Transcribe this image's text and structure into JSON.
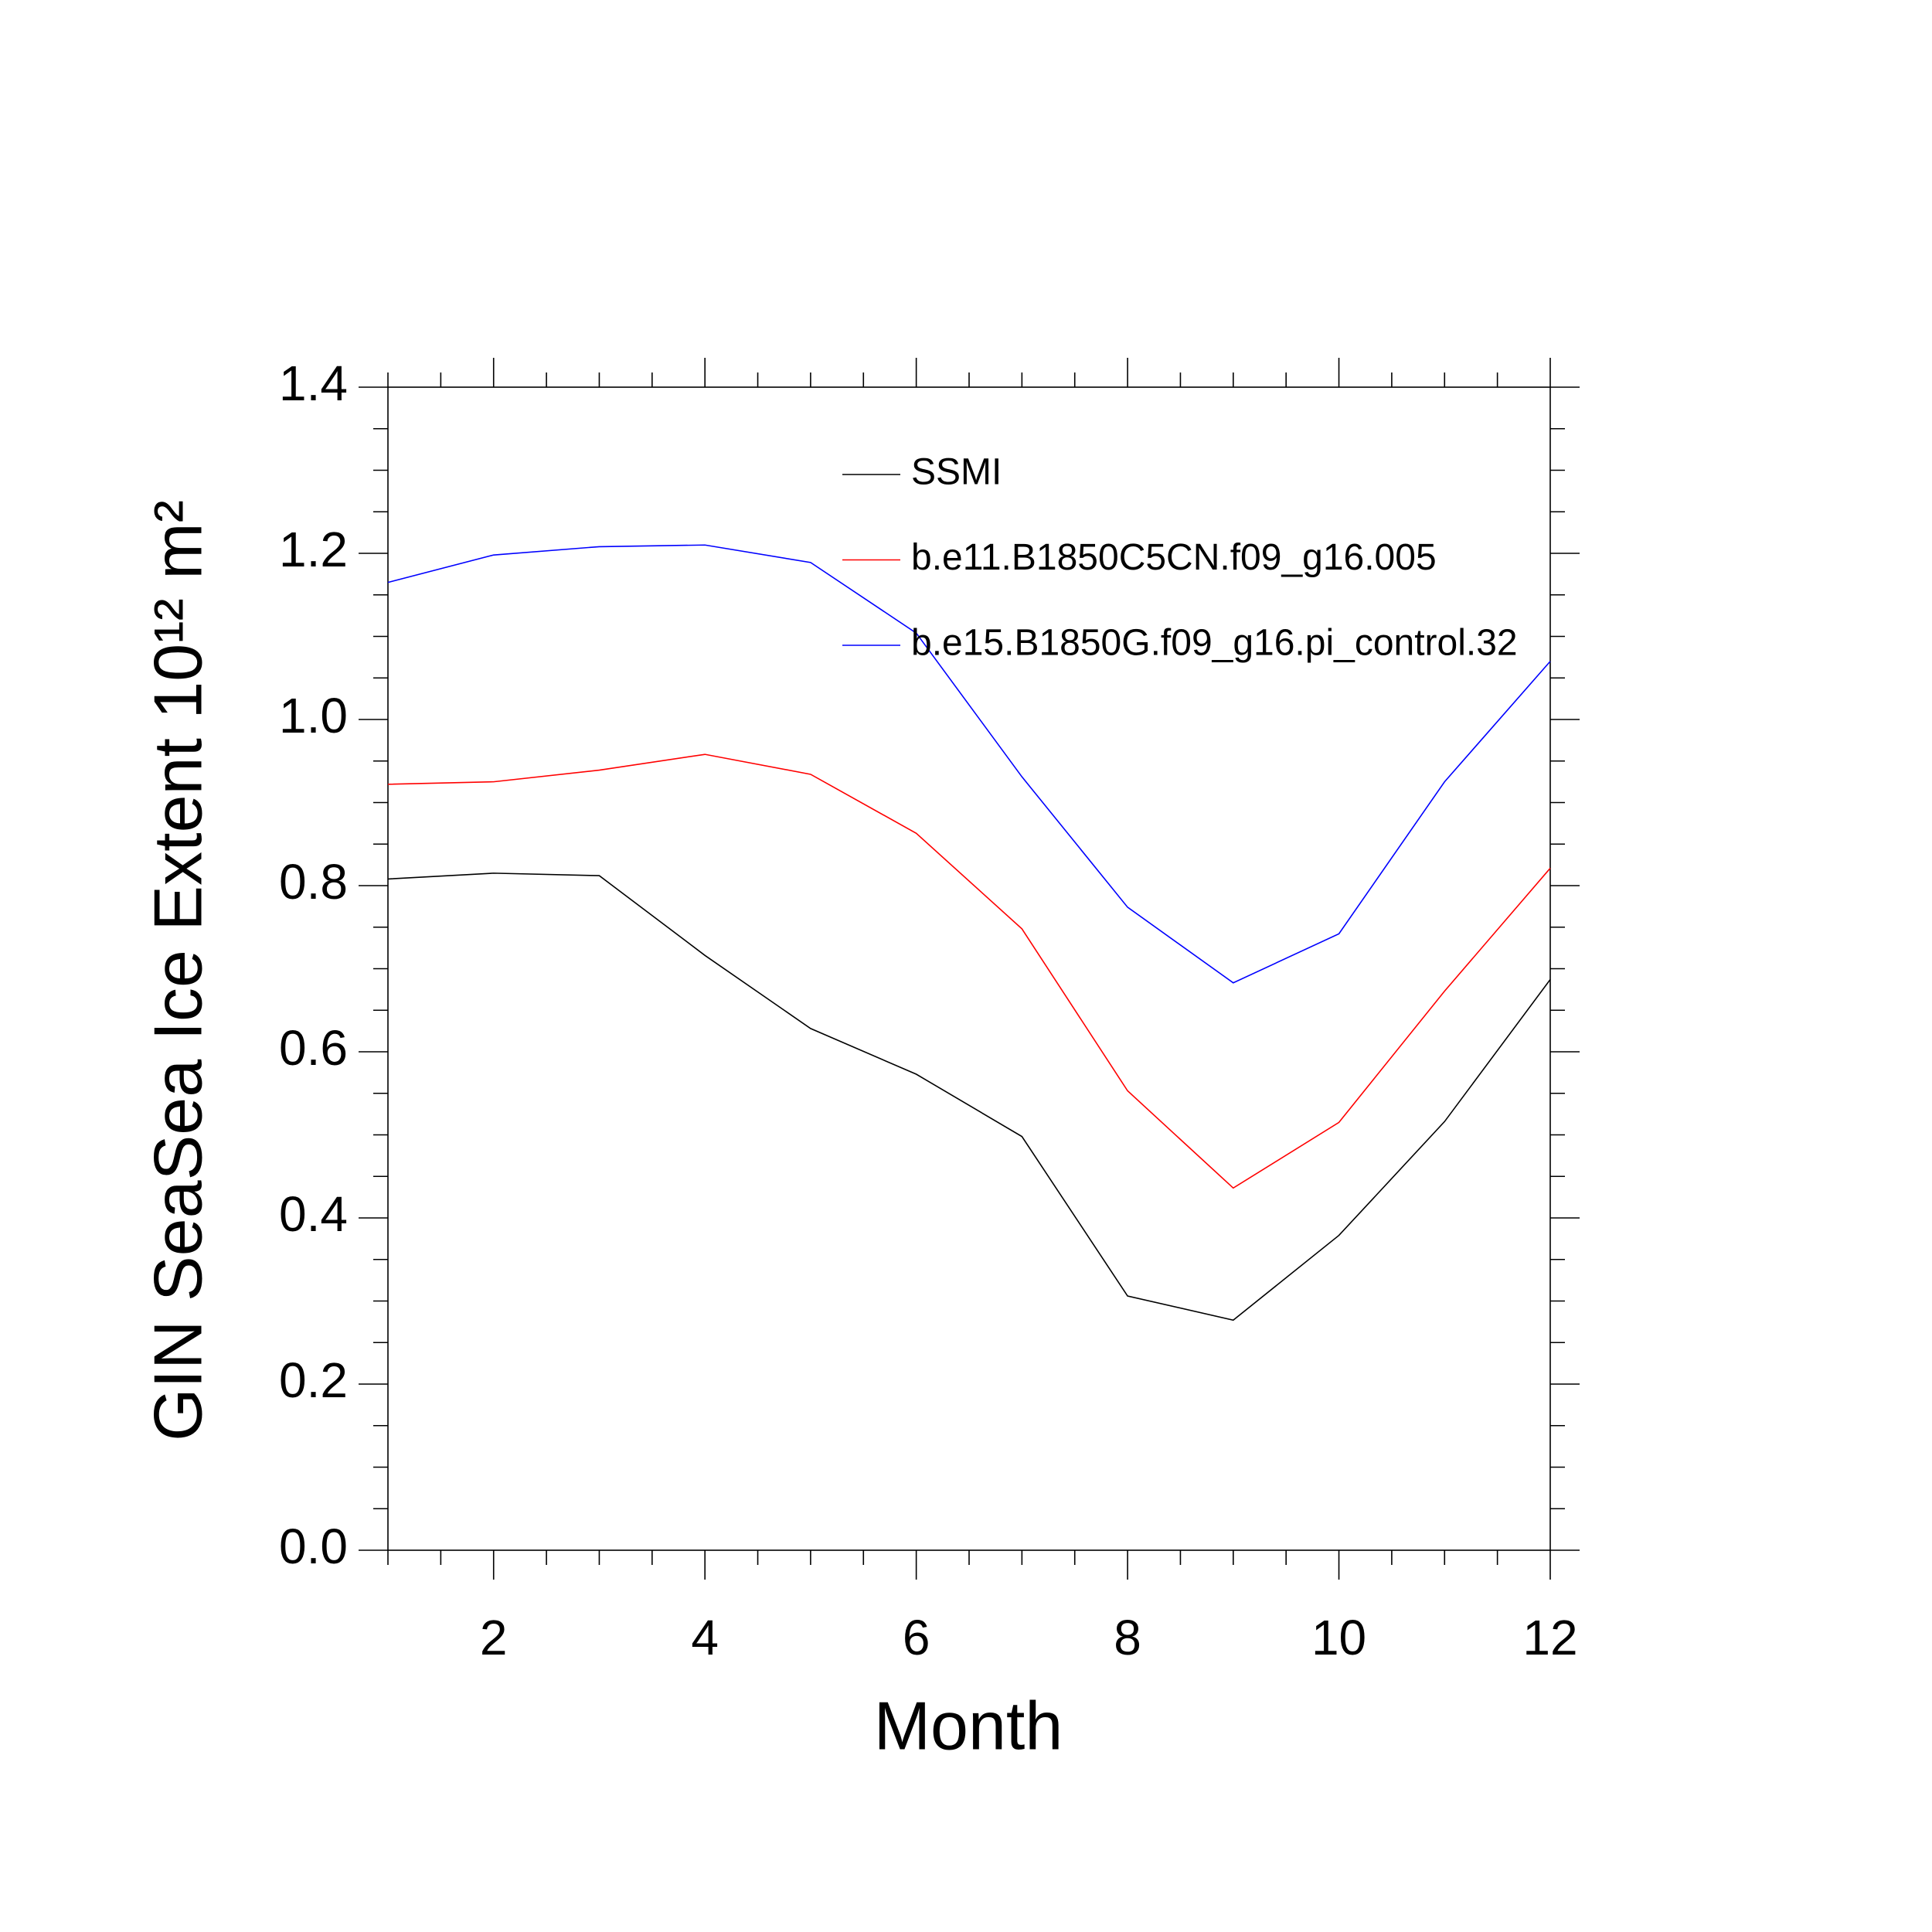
{
  "chart_data": {
    "type": "line",
    "x_label": "Month",
    "y_label": "GIN SeaSea Ice Extent 10¹² m²",
    "x": [
      1,
      2,
      3,
      4,
      5,
      6,
      7,
      8,
      9,
      10,
      11,
      12
    ],
    "series": [
      {
        "name": "SSMI",
        "color": "#000000",
        "values": [
          0.808,
          0.815,
          0.812,
          0.716,
          0.628,
          0.573,
          0.498,
          0.306,
          0.277,
          0.379,
          0.516,
          0.687
        ]
      },
      {
        "name": "b.e11.B1850C5CN.f09_g16.005",
        "color": "#ff0000",
        "values": [
          0.922,
          0.925,
          0.939,
          0.958,
          0.934,
          0.863,
          0.748,
          0.553,
          0.436,
          0.515,
          0.673,
          0.821
        ]
      },
      {
        "name": "b.e15.B1850G.f09_g16.pi_control.32",
        "color": "#0000ff",
        "values": [
          1.165,
          1.198,
          1.208,
          1.21,
          1.189,
          1.104,
          0.931,
          0.774,
          0.683,
          0.742,
          0.925,
          1.07
        ]
      }
    ],
    "xlim": [
      1,
      12
    ],
    "xticks": [
      2,
      4,
      6,
      8,
      10,
      12
    ],
    "ylim": [
      0,
      1.4
    ],
    "yticks": [
      {
        "value": 0,
        "label": "0.0"
      },
      0.2,
      0.4,
      0.6,
      0.8,
      {
        "value": 1,
        "label": "1.0"
      },
      1.2,
      1.4
    ]
  }
}
